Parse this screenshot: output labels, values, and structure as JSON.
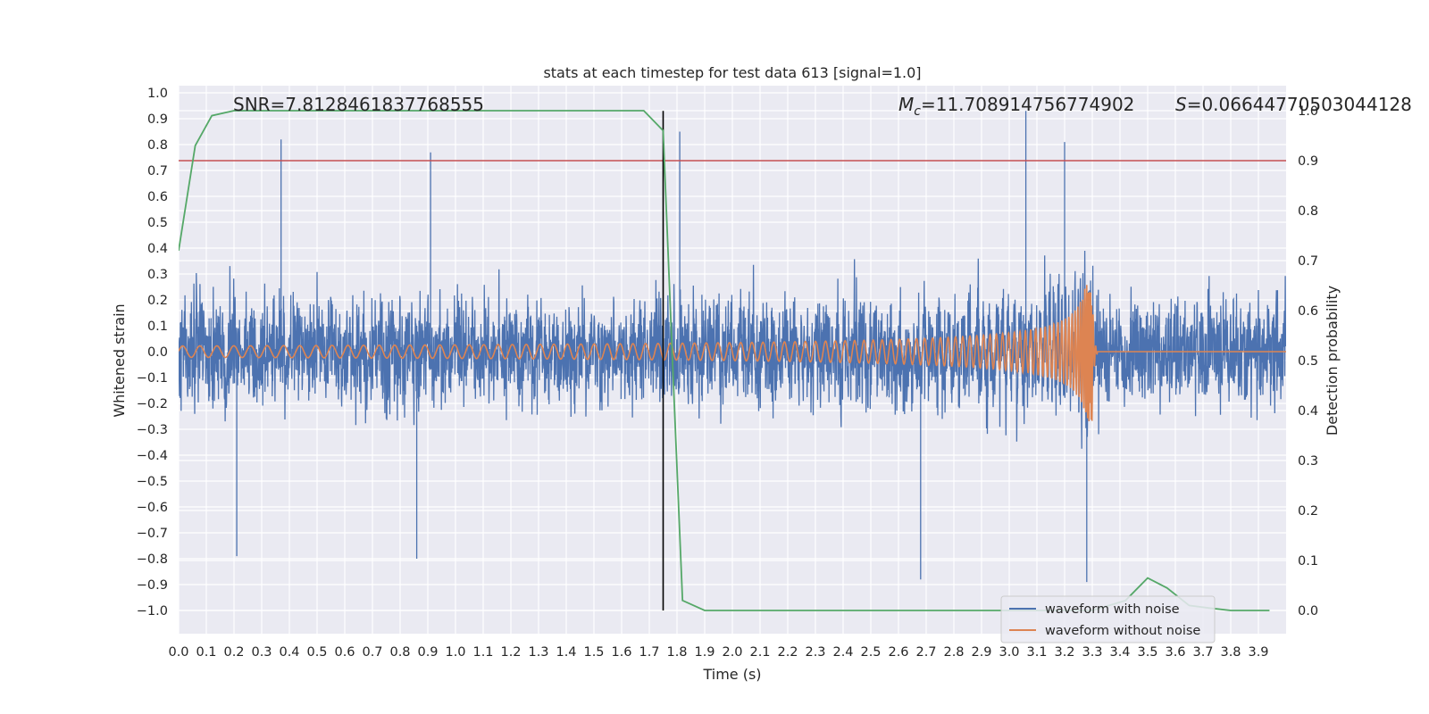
{
  "chart_data": {
    "type": "line",
    "title": "stats at each timestep for test data 613 [signal=1.0]",
    "xlabel": "Time (s)",
    "ylabel": "Whitened strain",
    "y2label": "Detection probability",
    "xlim": [
      0.0,
      4.0
    ],
    "ylim": [
      -1.09,
      1.03
    ],
    "y2lim": [
      -0.05,
      1.05
    ],
    "x_ticks": [
      "0.0",
      "0.1",
      "0.2",
      "0.3",
      "0.4",
      "0.5",
      "0.6",
      "0.7",
      "0.8",
      "0.9",
      "1.0",
      "1.1",
      "1.2",
      "1.3",
      "1.4",
      "1.5",
      "1.6",
      "1.7",
      "1.8",
      "1.9",
      "2.0",
      "2.1",
      "2.2",
      "2.3",
      "2.4",
      "2.5",
      "2.6",
      "2.7",
      "2.8",
      "2.9",
      "3.0",
      "3.1",
      "3.2",
      "3.3",
      "3.4",
      "3.5",
      "3.6",
      "3.7",
      "3.8",
      "3.9"
    ],
    "y_ticks": [
      "1.0",
      "0.9",
      "0.8",
      "0.7",
      "0.6",
      "0.5",
      "0.4",
      "0.3",
      "0.2",
      "0.1",
      "0.0",
      "−0.1",
      "−0.2",
      "−0.3",
      "−0.4",
      "−0.5",
      "−0.6",
      "−0.7",
      "−0.8",
      "−0.9",
      "−1.0"
    ],
    "y2_ticks": [
      "1.0",
      "0.9",
      "0.8",
      "0.7",
      "0.6",
      "0.5",
      "0.4",
      "0.3",
      "0.2",
      "0.1",
      "0.0"
    ],
    "grid": true,
    "annotations": {
      "snr": "SNR=7.8128461837768555",
      "mc_symbol": "M",
      "mc_sub": "c",
      "mc_value": "=11.708914756774902",
      "s_symbol": "S",
      "s_value": "=0.06644770503044128"
    },
    "series": [
      {
        "name": "waveform with noise",
        "color": "#4c72b0",
        "description": "noisy whitened strain, roughly within -0.8..0.9",
        "envelope_peaks": [
          {
            "x": 0.37,
            "y": 0.82
          },
          {
            "x": 0.91,
            "y": 0.77
          },
          {
            "x": 1.81,
            "y": 0.85
          },
          {
            "x": 3.06,
            "y": 0.93
          },
          {
            "x": 3.2,
            "y": 0.81
          },
          {
            "x": 0.21,
            "y": -0.79
          },
          {
            "x": 0.86,
            "y": -0.8
          },
          {
            "x": 3.28,
            "y": -0.89
          },
          {
            "x": 2.68,
            "y": -0.88
          }
        ]
      },
      {
        "name": "waveform without noise",
        "color": "#dd8452",
        "description": "chirp signal growing in amplitude, merging near t=3.3 s, flat afterwards",
        "merger_time": 3.3,
        "peak_amplitude": 0.27
      },
      {
        "name": "detection probability",
        "color": "#55a868",
        "axis": "right",
        "x": [
          0.0,
          0.06,
          0.12,
          0.2,
          0.4,
          1.0,
          1.5,
          1.6,
          1.68,
          1.75,
          1.78,
          1.82,
          1.9,
          2.2,
          3.0,
          3.3,
          3.42,
          3.5,
          3.57,
          3.65,
          3.72,
          3.8,
          3.94
        ],
        "y": [
          0.72,
          0.93,
          0.99,
          1.0,
          1.0,
          1.0,
          1.0,
          1.0,
          1.0,
          0.96,
          0.55,
          0.02,
          0.0,
          0.0,
          0.0,
          0.0,
          0.02,
          0.065,
          0.045,
          0.01,
          0.005,
          0.0,
          0.0
        ]
      }
    ],
    "threshold": {
      "value": 0.9,
      "axis": "right",
      "color": "#c44e52"
    },
    "vline": {
      "x": 1.75,
      "color": "#000000"
    },
    "legend": {
      "position": "bottom-right",
      "entries": [
        "waveform with noise",
        "waveform without noise"
      ]
    }
  }
}
